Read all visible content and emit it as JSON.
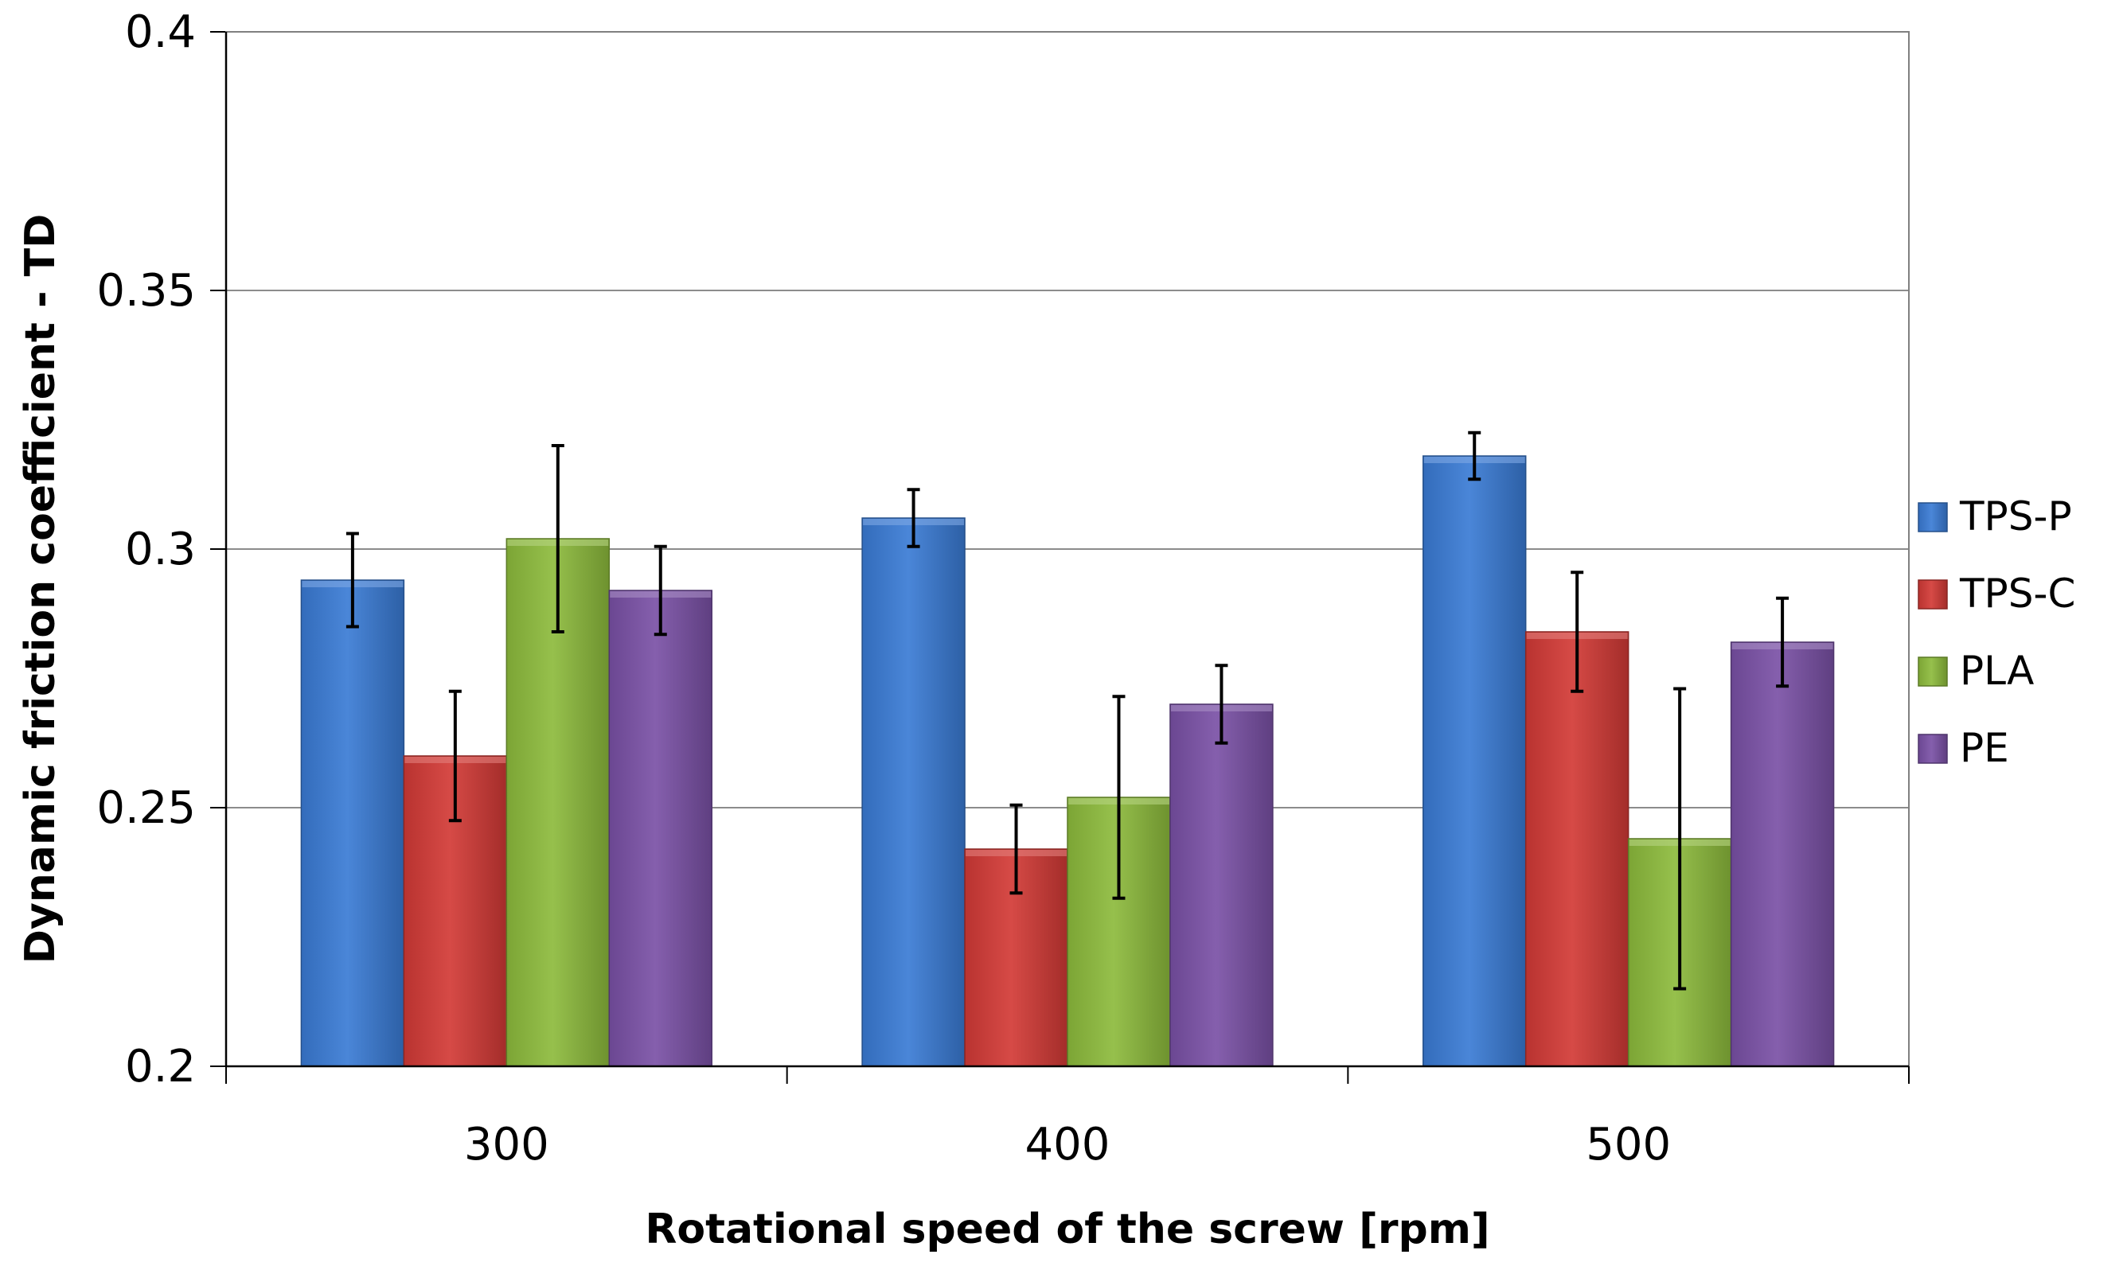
{
  "chart_data": {
    "type": "bar",
    "title": "",
    "xlabel": "Rotational speed of the screw [rpm]",
    "ylabel": "Dynamic friction coefficient  - TD",
    "categories": [
      "300",
      "400",
      "500"
    ],
    "ylim": [
      0.2,
      0.4
    ],
    "yticks": [
      0.2,
      0.25,
      0.3,
      0.35,
      0.4
    ],
    "ytick_labels": [
      "0.2",
      "0.25",
      "0.3",
      "0.35",
      "0.4"
    ],
    "grid": true,
    "legend_position": "right",
    "series": [
      {
        "name": "TPS-P",
        "color": "#3a7bd5",
        "values": [
          0.294,
          0.306,
          0.318
        ],
        "errors": [
          0.009,
          0.0055,
          0.0045
        ]
      },
      {
        "name": "TPS-C",
        "color": "#d23a36",
        "values": [
          0.26,
          0.242,
          0.284
        ],
        "errors": [
          0.0125,
          0.0085,
          0.0115
        ]
      },
      {
        "name": "PLA",
        "color": "#8dbb3c",
        "values": [
          0.302,
          0.252,
          0.244
        ],
        "errors": [
          0.018,
          0.0195,
          0.029
        ]
      },
      {
        "name": "PE",
        "color": "#7a51a6",
        "values": [
          0.292,
          0.27,
          0.282
        ],
        "errors": [
          0.0085,
          0.0075,
          0.0085
        ]
      }
    ]
  }
}
